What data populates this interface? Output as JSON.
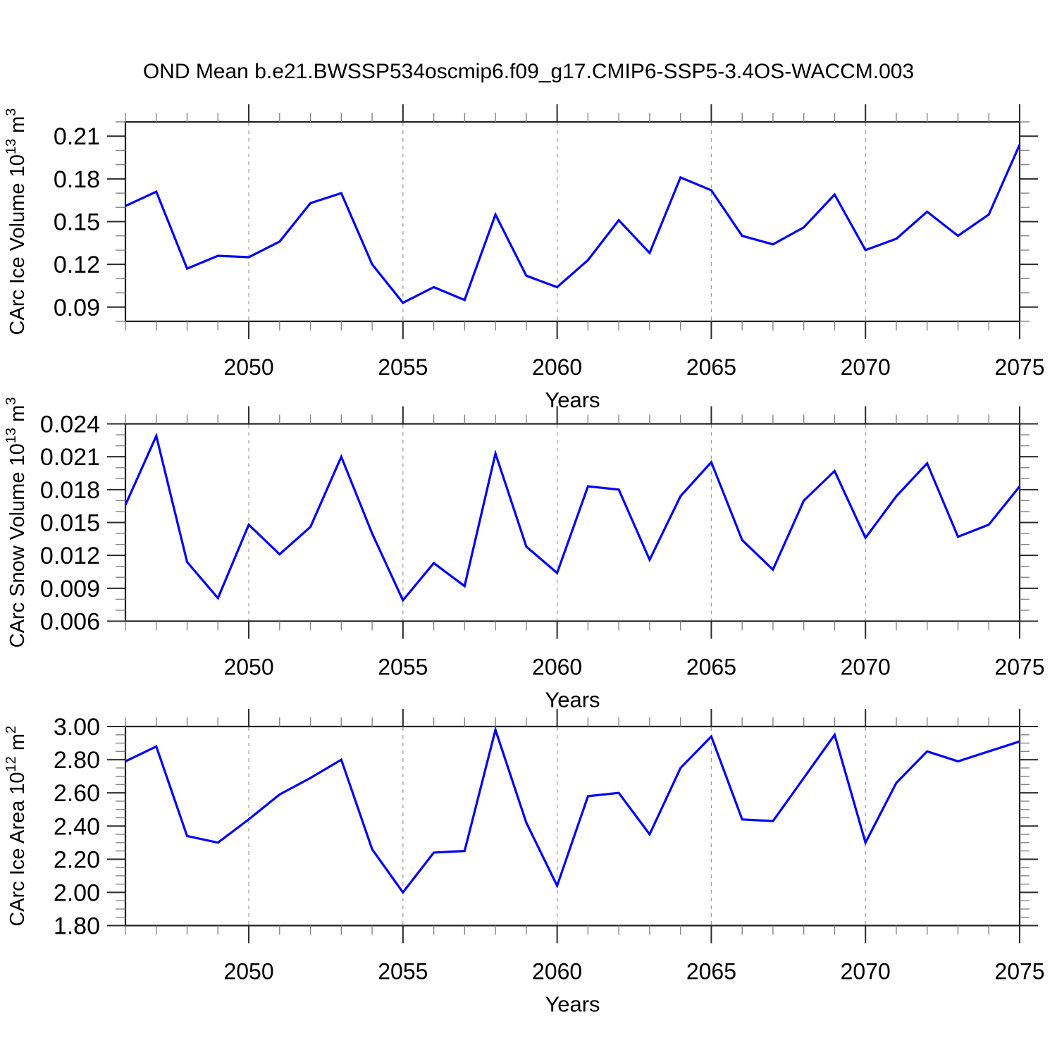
{
  "title": "OND Mean b.e21.BWSSP534oscmip6.f09_g17.CMIP6-SSP5-3.4OS-WACCM.003",
  "line_color": "#0000ff",
  "x_axis": {
    "label": "Years",
    "years": [
      2046,
      2047,
      2048,
      2049,
      2050,
      2051,
      2052,
      2053,
      2054,
      2055,
      2056,
      2057,
      2058,
      2059,
      2060,
      2061,
      2062,
      2063,
      2064,
      2065,
      2066,
      2067,
      2068,
      2069,
      2070,
      2071,
      2072,
      2073,
      2074,
      2075
    ],
    "major_ticks": [
      2050,
      2055,
      2060,
      2065,
      2070,
      2075
    ],
    "major_tick_labels": [
      "2050",
      "2055",
      "2060",
      "2065",
      "2070",
      "2075"
    ],
    "gridline_years": [
      2050,
      2055,
      2060,
      2065,
      2070
    ]
  },
  "chart_data": [
    {
      "type": "line",
      "id": "carc-ice-volume",
      "ylabel_parts": [
        {
          "text": "CArc Ice Volume 10",
          "sup": false
        },
        {
          "text": "13",
          "sup": true
        },
        {
          "text": " m",
          "sup": false
        },
        {
          "text": "3",
          "sup": true
        }
      ],
      "ylim": [
        0.08,
        0.22
      ],
      "y_major_ticks": [
        {
          "value": 0.21,
          "label": "0.21"
        },
        {
          "value": 0.18,
          "label": "0.18"
        },
        {
          "value": 0.15,
          "label": "0.15"
        },
        {
          "value": 0.12,
          "label": "0.12"
        },
        {
          "value": 0.09,
          "label": "0.09"
        }
      ],
      "y_minor_step": 0.01,
      "values": [
        0.161,
        0.171,
        0.117,
        0.126,
        0.125,
        0.136,
        0.163,
        0.17,
        0.12,
        0.093,
        0.104,
        0.095,
        0.155,
        0.112,
        0.104,
        0.123,
        0.151,
        0.128,
        0.181,
        0.172,
        0.14,
        0.134,
        0.146,
        0.169,
        0.13,
        0.138,
        0.157,
        0.14,
        0.155,
        0.204
      ]
    },
    {
      "type": "line",
      "id": "carc-snow-volume",
      "ylabel_parts": [
        {
          "text": "CArc Snow Volume 10",
          "sup": false
        },
        {
          "text": "13",
          "sup": true
        },
        {
          "text": " m",
          "sup": false
        },
        {
          "text": "3",
          "sup": true
        }
      ],
      "ylim": [
        0.006,
        0.024
      ],
      "y_major_ticks": [
        {
          "value": 0.024,
          "label": "0.024"
        },
        {
          "value": 0.021,
          "label": "0.021"
        },
        {
          "value": 0.018,
          "label": "0.018"
        },
        {
          "value": 0.015,
          "label": "0.015"
        },
        {
          "value": 0.012,
          "label": "0.012"
        },
        {
          "value": 0.009,
          "label": "0.009"
        },
        {
          "value": 0.006,
          "label": "0.006"
        }
      ],
      "y_minor_step": 0.001,
      "values": [
        0.0166,
        0.0229,
        0.0114,
        0.0081,
        0.0148,
        0.0121,
        0.0146,
        0.021,
        0.014,
        0.0079,
        0.0113,
        0.0092,
        0.0213,
        0.0128,
        0.0104,
        0.0183,
        0.018,
        0.0116,
        0.0174,
        0.0205,
        0.0134,
        0.0107,
        0.017,
        0.0197,
        0.0136,
        0.0174,
        0.0204,
        0.0137,
        0.0148,
        0.0183
      ]
    },
    {
      "type": "line",
      "id": "carc-ice-area",
      "ylabel_parts": [
        {
          "text": "CArc Ice Area 10",
          "sup": false
        },
        {
          "text": "12",
          "sup": true
        },
        {
          "text": " m",
          "sup": false
        },
        {
          "text": "2",
          "sup": true
        }
      ],
      "ylim": [
        1.8,
        3.0
      ],
      "y_major_ticks": [
        {
          "value": 3.0,
          "label": "3.00"
        },
        {
          "value": 2.8,
          "label": "2.80"
        },
        {
          "value": 2.6,
          "label": "2.60"
        },
        {
          "value": 2.4,
          "label": "2.40"
        },
        {
          "value": 2.2,
          "label": "2.20"
        },
        {
          "value": 2.0,
          "label": "2.00"
        },
        {
          "value": 1.8,
          "label": "1.80"
        }
      ],
      "y_minor_step": 0.05,
      "values": [
        2.79,
        2.88,
        2.34,
        2.3,
        2.44,
        2.59,
        2.69,
        2.8,
        2.26,
        2.0,
        2.24,
        2.25,
        2.98,
        2.42,
        2.04,
        2.58,
        2.6,
        2.35,
        2.75,
        2.94,
        2.44,
        2.43,
        2.69,
        2.95,
        2.3,
        2.66,
        2.85,
        2.79,
        2.85,
        2.91
      ]
    }
  ]
}
